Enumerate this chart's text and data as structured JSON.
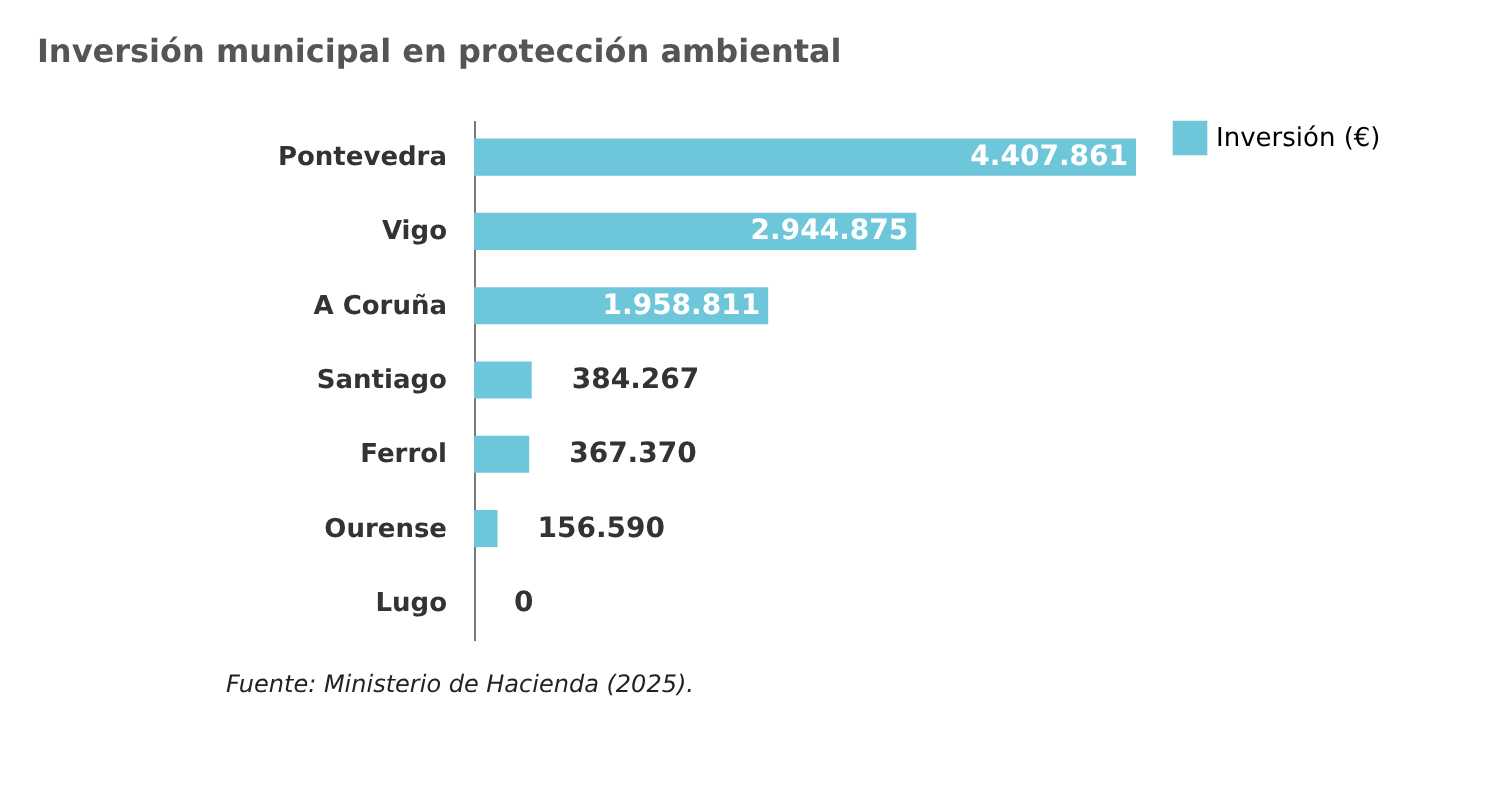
{
  "chart_data": {
    "type": "bar",
    "orientation": "horizontal",
    "title": "Inversión municipal en protección ambiental",
    "categories": [
      "Pontevedra",
      "Vigo",
      "A Coruña",
      "Santiago",
      "Ferrol",
      "Ourense",
      "Lugo"
    ],
    "series": [
      {
        "name": "Inversión (€)",
        "color": "#6ec6db",
        "values": [
          4407861,
          2944875,
          1958811,
          384267,
          367370,
          156590,
          0
        ],
        "value_labels": [
          "4.407.861",
          "2.944.875",
          "1.958.811",
          "384.267",
          "367.370",
          "156.590",
          "0"
        ]
      }
    ],
    "legend": "top right",
    "annotations": [
      "Fuente: Ministerio de Hacienda (2025)."
    ]
  }
}
